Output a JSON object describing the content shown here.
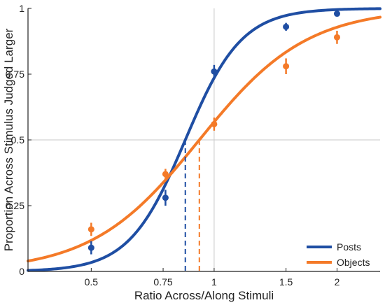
{
  "chart_data": {
    "type": "scatter",
    "xlabel": "Ratio Across/Along Stimuli",
    "ylabel": "Proportion Across Stimulus Judged Larger",
    "x_scale": "log",
    "xlim": [
      0.35,
      2.55
    ],
    "ylim": [
      0,
      1
    ],
    "x_ticks": [
      0.5,
      0.75,
      1,
      1.5,
      2
    ],
    "x_tick_labels": [
      "0.5",
      "0.75",
      "1",
      "1.5",
      "2"
    ],
    "y_ticks": [
      0,
      0.25,
      0.5,
      0.75,
      1
    ],
    "y_tick_labels": [
      "0",
      "0.25",
      "0.5",
      "0.75",
      "1"
    ],
    "reference_lines": {
      "x": 1,
      "y": 0.5
    },
    "grid": false,
    "legend_position": "bottom-right",
    "series": [
      {
        "name": "Posts",
        "color": "#1f4ea3",
        "points": [
          {
            "x": 0.5,
            "y": 0.09,
            "err": 0.025
          },
          {
            "x": 0.76,
            "y": 0.28,
            "err": 0.03
          },
          {
            "x": 1.0,
            "y": 0.76,
            "err": 0.025
          },
          {
            "x": 1.5,
            "y": 0.93,
            "err": 0.015
          },
          {
            "x": 2.0,
            "y": 0.98,
            "err": 0.008
          }
        ],
        "fit": {
          "pse": 0.85,
          "slope": 6.3
        },
        "pse_marker": 0.85
      },
      {
        "name": "Objects",
        "color": "#f47a28",
        "points": [
          {
            "x": 0.5,
            "y": 0.16,
            "err": 0.025
          },
          {
            "x": 0.76,
            "y": 0.37,
            "err": 0.02
          },
          {
            "x": 1.0,
            "y": 0.56,
            "err": 0.025
          },
          {
            "x": 1.5,
            "y": 0.78,
            "err": 0.03
          },
          {
            "x": 2.0,
            "y": 0.89,
            "err": 0.025
          }
        ],
        "fit": {
          "pse": 0.92,
          "slope": 3.3
        },
        "pse_marker": 0.92
      }
    ]
  }
}
